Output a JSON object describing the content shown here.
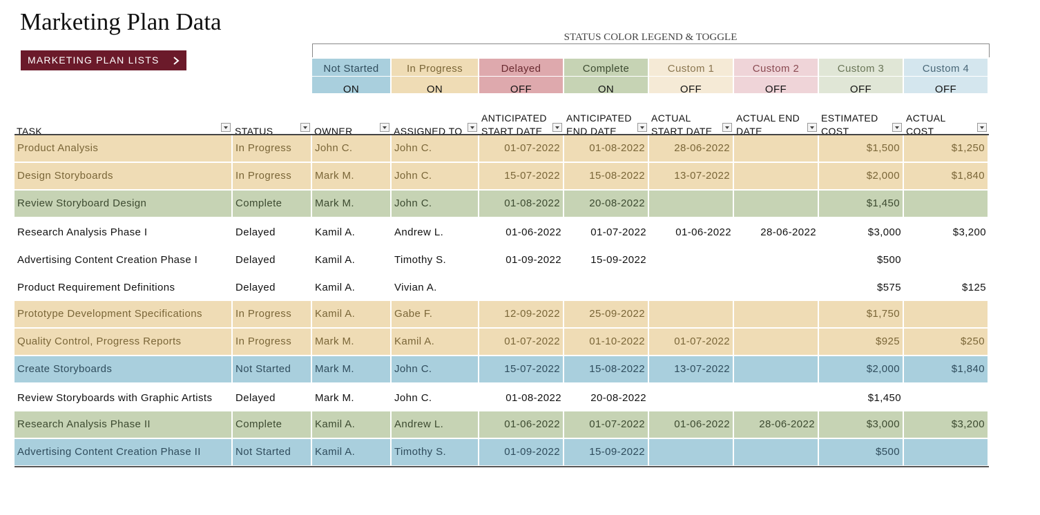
{
  "title": "Marketing Plan Data",
  "button": "MARKETING PLAN LISTS",
  "legend": {
    "title": "STATUS COLOR LEGEND & TOGGLE",
    "items": [
      {
        "label": "Not Started",
        "state": "ON",
        "highlight": true,
        "color": "#a9cfdd",
        "text_color": "#2f4c5c"
      },
      {
        "label": "In Progress",
        "state": "ON",
        "highlight": true,
        "color": "#efdcb5",
        "text_color": "#7a6638"
      },
      {
        "label": "Delayed",
        "state": "OFF",
        "highlight": false,
        "color": "#dea9ad",
        "text_color": "#6a2a30"
      },
      {
        "label": "Complete",
        "state": "ON",
        "highlight": true,
        "color": "#c6d3b4",
        "text_color": "#3c4a30"
      },
      {
        "label": "Custom 1",
        "state": "OFF",
        "highlight": false,
        "color": "#f5ead6",
        "text_color": "#8a7650"
      },
      {
        "label": "Custom 2",
        "state": "OFF",
        "highlight": false,
        "color": "#efd4d8",
        "text_color": "#8a4a52"
      },
      {
        "label": "Custom 3",
        "state": "OFF",
        "highlight": false,
        "color": "#e0e6d6",
        "text_color": "#6a7658"
      },
      {
        "label": "Custom 4",
        "state": "OFF",
        "highlight": false,
        "color": "#d4e6ee",
        "text_color": "#4a6878"
      }
    ]
  },
  "table": {
    "columns": [
      "TASK",
      "STATUS",
      "OWNER",
      "ASSIGNED TO",
      "ANTICIPATED START DATE",
      "ANTICIPATED END DATE",
      "ACTUAL START DATE",
      "ACTUAL END DATE",
      "ESTIMATED COST",
      "ACTUAL COST"
    ],
    "rows": [
      [
        "Product Analysis",
        "In Progress",
        "John C.",
        "John C.",
        "01-07-2022",
        "01-08-2022",
        "28-06-2022",
        null,
        "$1,500",
        "$1,250"
      ],
      [
        "Design Storyboards",
        "In Progress",
        "Mark M.",
        "John C.",
        "15-07-2022",
        "15-08-2022",
        "13-07-2022",
        null,
        "$2,000",
        "$1,840"
      ],
      [
        "Review Storyboard Design",
        "Complete",
        "Mark M.",
        "John C.",
        "01-08-2022",
        "20-08-2022",
        null,
        null,
        "$1,450",
        null
      ],
      [
        "Research Analysis Phase I",
        "Delayed",
        "Kamil A.",
        "Andrew L.",
        "01-06-2022",
        "01-07-2022",
        "01-06-2022",
        "28-06-2022",
        "$3,000",
        "$3,200"
      ],
      [
        "Advertising Content Creation Phase I",
        "Delayed",
        "Kamil A.",
        "Timothy S.",
        "01-09-2022",
        "15-09-2022",
        null,
        null,
        "$500",
        null
      ],
      [
        "Product Requirement Definitions",
        "Delayed",
        "Kamil A.",
        "Vivian A.",
        null,
        null,
        null,
        null,
        "$575",
        "$125"
      ],
      [
        "Prototype Development Specifications",
        "In Progress",
        "Kamil A.",
        "Gabe F.",
        "12-09-2022",
        "25-09-2022",
        null,
        null,
        "$1,750",
        null
      ],
      [
        "Quality Control, Progress Reports",
        "In Progress",
        "Mark M.",
        "Kamil A.",
        "01-07-2022",
        "01-10-2022",
        "01-07-2022",
        null,
        "$925",
        "$250"
      ],
      [
        "Create Storyboards",
        "Not Started",
        "Mark M.",
        "John C.",
        "15-07-2022",
        "15-08-2022",
        "13-07-2022",
        null,
        "$2,000",
        "$1,840"
      ],
      [
        "Review Storyboards with Graphic Artists",
        "Delayed",
        "Mark M.",
        "John C.",
        "01-08-2022",
        "20-08-2022",
        null,
        null,
        "$1,450",
        null
      ],
      [
        "Research Analysis Phase II",
        "Complete",
        "Kamil A.",
        "Andrew L.",
        "01-06-2022",
        "01-07-2022",
        "01-06-2022",
        "28-06-2022",
        "$3,000",
        "$3,200"
      ],
      [
        "Advertising Content Creation Phase II",
        "Not Started",
        "Kamil A.",
        "Timothy S.",
        "01-09-2022",
        "15-09-2022",
        null,
        null,
        "$500",
        null
      ]
    ]
  }
}
